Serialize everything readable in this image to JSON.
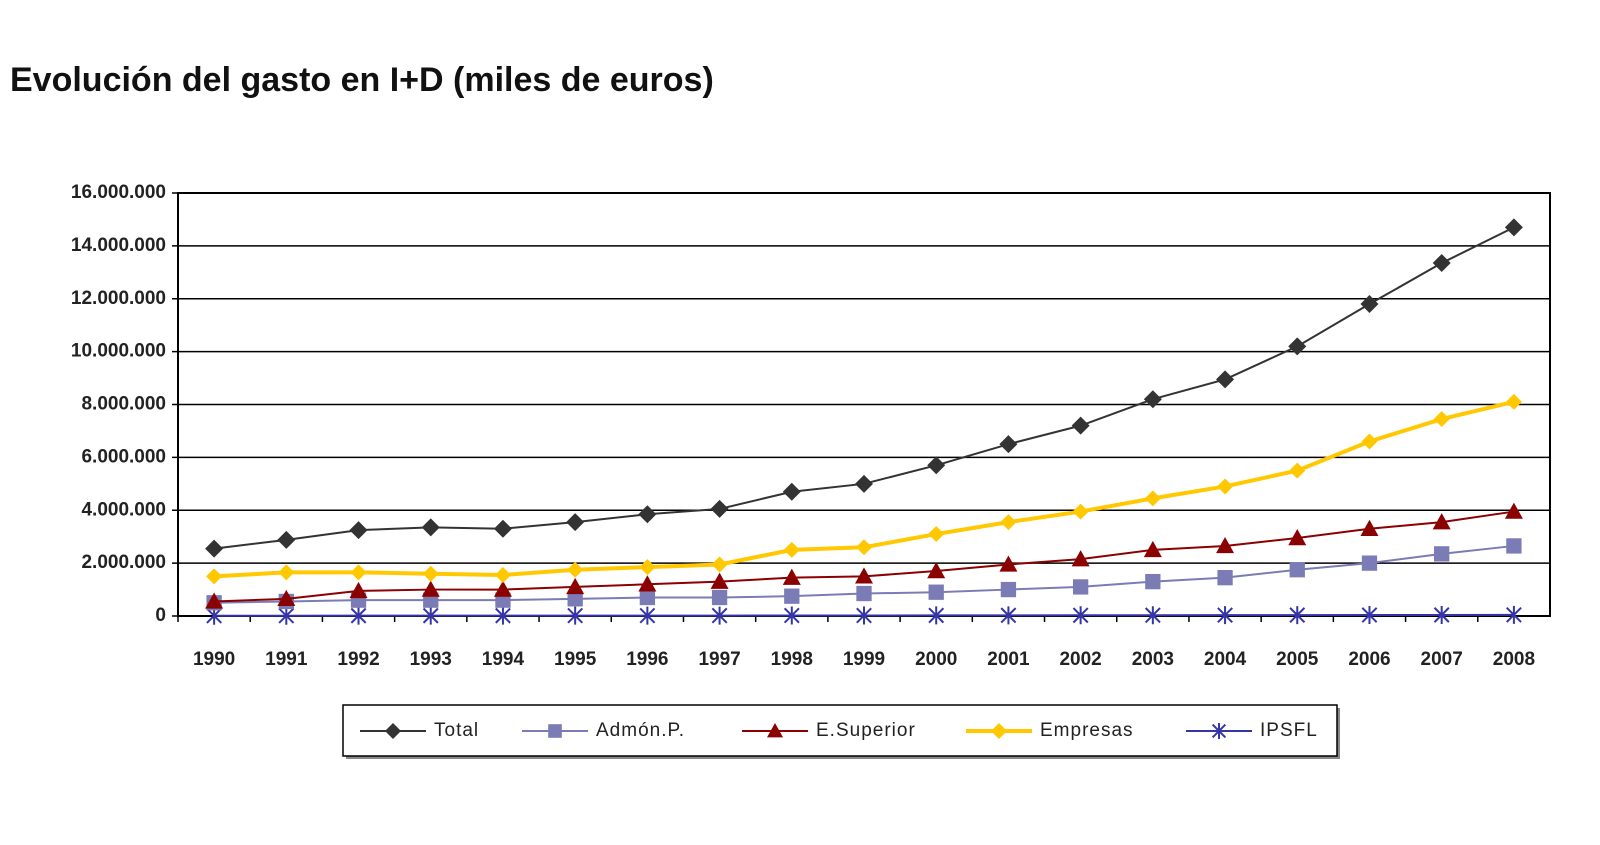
{
  "chart_data": {
    "type": "line",
    "title": "Evolución del gasto en I+D (miles de euros)",
    "categories": [
      "1990",
      "1991",
      "1992",
      "1993",
      "1994",
      "1995",
      "1996",
      "1997",
      "1998",
      "1999",
      "2000",
      "2001",
      "2002",
      "2003",
      "2004",
      "2005",
      "2006",
      "2007",
      "2008"
    ],
    "series": [
      {
        "name": "Total",
        "color": "#333333",
        "marker": "diamond",
        "values": [
          2550000,
          2880000,
          3250000,
          3350000,
          3300000,
          3550000,
          3850000,
          4050000,
          4700000,
          5000000,
          5700000,
          6500000,
          7200000,
          8200000,
          8950000,
          10200000,
          11800000,
          13350000,
          14700000
        ]
      },
      {
        "name": "Admón.P.",
        "color": "#7b7bb5",
        "marker": "square",
        "values": [
          500000,
          550000,
          600000,
          600000,
          600000,
          650000,
          700000,
          700000,
          750000,
          850000,
          900000,
          1000000,
          1100000,
          1300000,
          1450000,
          1750000,
          2000000,
          2350000,
          2650000
        ]
      },
      {
        "name": "E.Superior",
        "color": "#8b0000",
        "marker": "triangle",
        "values": [
          550000,
          650000,
          950000,
          1000000,
          1000000,
          1100000,
          1200000,
          1300000,
          1450000,
          1500000,
          1700000,
          1950000,
          2150000,
          2500000,
          2650000,
          2950000,
          3300000,
          3550000,
          3950000
        ]
      },
      {
        "name": "Empresas",
        "color": "#ffc800",
        "marker": "diamond",
        "values": [
          1500000,
          1650000,
          1650000,
          1600000,
          1550000,
          1750000,
          1850000,
          1950000,
          2500000,
          2600000,
          3100000,
          3550000,
          3950000,
          4450000,
          4900000,
          5500000,
          6600000,
          7450000,
          8100000
        ]
      },
      {
        "name": "IPSFL",
        "color": "#3535a8",
        "marker": "asterisk",
        "values": [
          10000,
          10000,
          12000,
          12000,
          12000,
          14000,
          15000,
          16000,
          18000,
          20000,
          22000,
          25000,
          27000,
          30000,
          32000,
          35000,
          38000,
          40000,
          42000
        ]
      }
    ],
    "ylim": [
      0,
      16000000
    ],
    "yticks": [
      0,
      {
        "value": 2000000,
        "label": "2.000.000"
      },
      {
        "value": 4000000,
        "label": "4.000.000"
      },
      {
        "value": 6000000,
        "label": "6.000.000"
      },
      {
        "value": 8000000,
        "label": "8.000.000"
      },
      {
        "value": 10000000,
        "label": "10.000.000"
      },
      {
        "value": 12000000,
        "label": "12.000.000"
      },
      {
        "value": 14000000,
        "label": "14.000.000"
      },
      {
        "value": 16000000,
        "label": "16.000.000"
      }
    ],
    "grid": true,
    "legend": "bottom"
  }
}
